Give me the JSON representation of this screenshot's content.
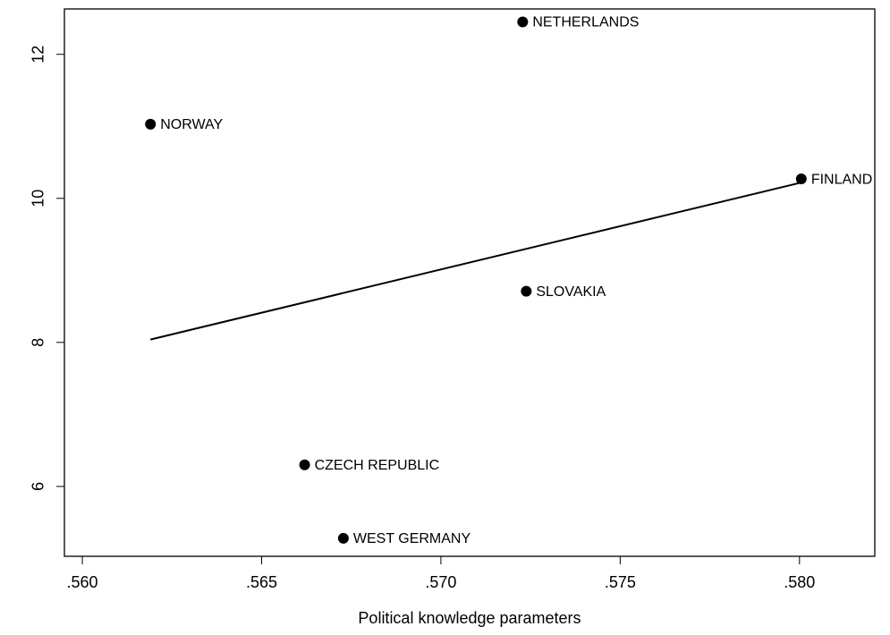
{
  "chart_data": {
    "type": "scatter",
    "xlabel": "Political knowledge parameters",
    "x": [
      0.57228,
      0.5619,
      0.58005,
      0.57238,
      0.5662,
      0.56728
    ],
    "values": [
      12.45,
      11.03,
      10.27,
      8.71,
      6.3,
      5.28
    ],
    "labels": [
      "NETHERLANDS",
      "NORWAY",
      "FINLAND",
      "SLOVAKIA",
      "CZECH REPUBLIC",
      "WEST GERMANY"
    ],
    "color": "#000000",
    "fit": {
      "x": [
        0.5619,
        0.58005
      ],
      "y": [
        8.04,
        10.22
      ]
    },
    "xlim": [
      0.5595,
      0.5821
    ],
    "ylim": [
      5.03,
      12.63
    ],
    "xticks": [
      {
        "value": 0.56,
        "label": ".560"
      },
      {
        "value": 0.565,
        "label": ".565"
      },
      {
        "value": 0.57,
        "label": ".570"
      },
      {
        "value": 0.575,
        "label": ".575"
      },
      {
        "value": 0.58,
        "label": ".580"
      }
    ],
    "yticks": [
      6,
      8,
      10,
      12
    ]
  }
}
